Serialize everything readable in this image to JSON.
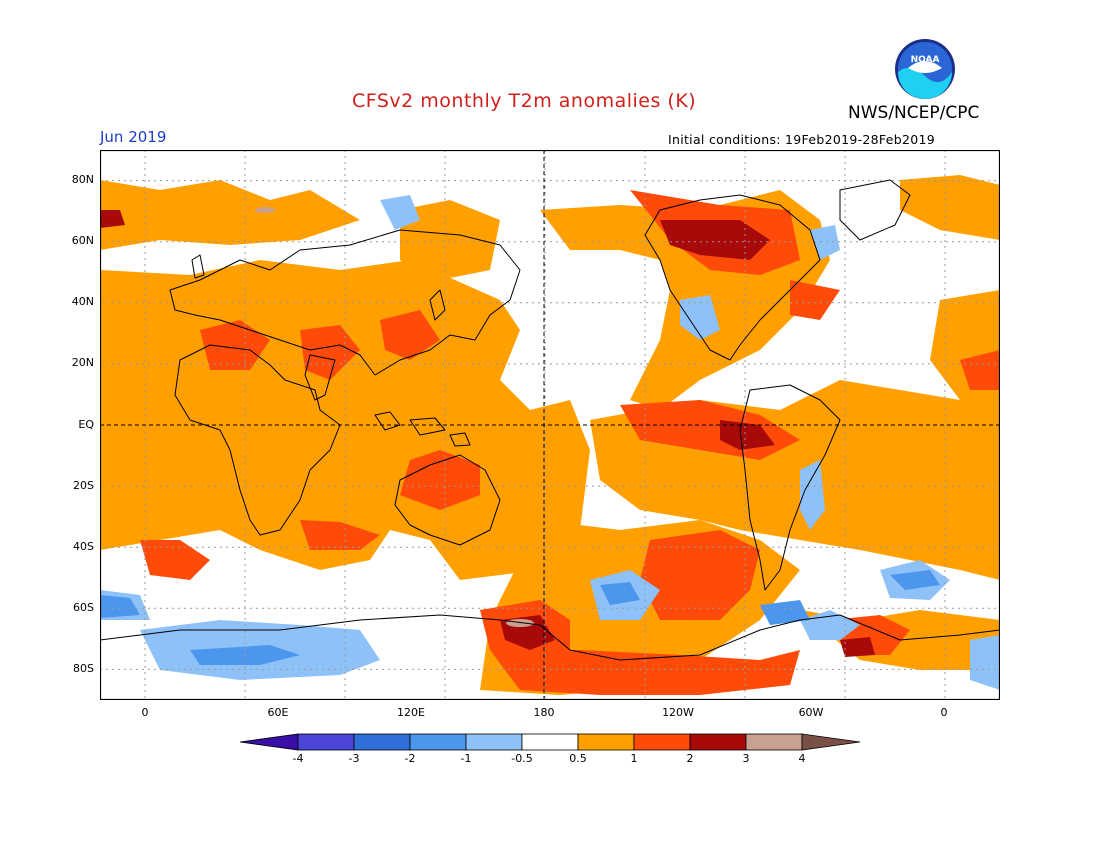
{
  "header": {
    "title": "CFSv2 monthly T2m anomalies (K)",
    "agency": "NWS/NCEP/CPC",
    "logo_text": "NOAA",
    "month": "Jun 2019",
    "initial_conditions": "Initial conditions: 19Feb2019-28Feb2019"
  },
  "map": {
    "lat_labels": [
      "80N",
      "60N",
      "40N",
      "20N",
      "EQ",
      "20S",
      "40S",
      "60S",
      "80S"
    ],
    "lon_labels": [
      "0",
      "60E",
      "120E",
      "180",
      "120W",
      "60W",
      "0"
    ]
  },
  "colorbar": {
    "levels": [
      "-4",
      "-3",
      "-2",
      "-1",
      "-0.5",
      "0.5",
      "1",
      "2",
      "3",
      "4"
    ],
    "colors": [
      "#3a0fa8",
      "#4b46d8",
      "#2f6fd8",
      "#4c96ee",
      "#8ec1f8",
      "#ffffff",
      "#ff9f00",
      "#ff4b0a",
      "#a80a0a",
      "#caa091",
      "#7a5046"
    ]
  }
}
